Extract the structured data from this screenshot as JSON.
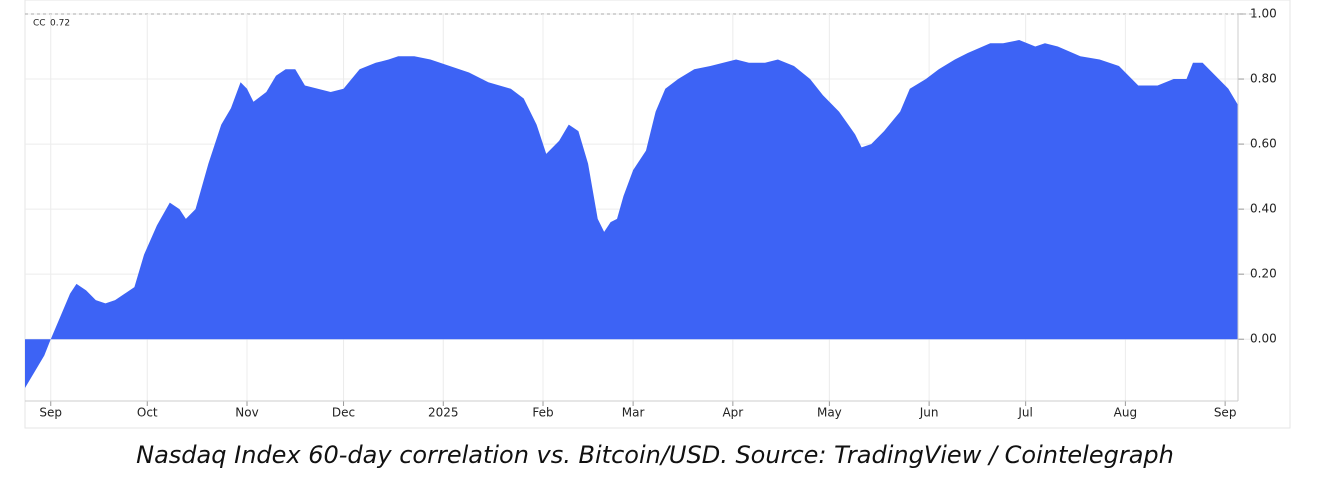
{
  "chart_data": {
    "type": "area",
    "caption": "Nasdaq Index 60-day correlation vs. Bitcoin/USD. Source: TradingView / Cointelegraph",
    "x": [
      0,
      3,
      6,
      8,
      11,
      14,
      16,
      19,
      22,
      25,
      28,
      31,
      34,
      37,
      41,
      45,
      48,
      50,
      53,
      57,
      61,
      64,
      67,
      69,
      71,
      75,
      78,
      81,
      84,
      87,
      91,
      95,
      99,
      104,
      109,
      113,
      116,
      121,
      126,
      132,
      138,
      144,
      151,
      155,
      159,
      162,
      166,
      169,
      172,
      175,
      178,
      180,
      182,
      184,
      186,
      189,
      193,
      196,
      199,
      203,
      208,
      213,
      217,
      221,
      225,
      230,
      234,
      239,
      244,
      248,
      253,
      258,
      260,
      263,
      267,
      272,
      275,
      280,
      284,
      289,
      293,
      300,
      304,
      309,
      314,
      317,
      321,
      328,
      334,
      340,
      346,
      352,
      357,
      361,
      363,
      366,
      370,
      374,
      377
    ],
    "series": [
      {
        "name": "CC",
        "color": "#3d63f5",
        "values": [
          -0.15,
          -0.1,
          -0.05,
          0,
          0.07,
          0.14,
          0.17,
          0.15,
          0.12,
          0.11,
          0.12,
          0.14,
          0.16,
          0.26,
          0.35,
          0.42,
          0.4,
          0.37,
          0.4,
          0.54,
          0.66,
          0.71,
          0.79,
          0.77,
          0.73,
          0.76,
          0.81,
          0.83,
          0.83,
          0.78,
          0.77,
          0.76,
          0.77,
          0.83,
          0.85,
          0.86,
          0.87,
          0.87,
          0.86,
          0.84,
          0.82,
          0.79,
          0.77,
          0.74,
          0.66,
          0.57,
          0.61,
          0.66,
          0.64,
          0.54,
          0.37,
          0.33,
          0.36,
          0.37,
          0.44,
          0.52,
          0.58,
          0.7,
          0.77,
          0.8,
          0.83,
          0.84,
          0.85,
          0.86,
          0.85,
          0.85,
          0.86,
          0.84,
          0.8,
          0.75,
          0.7,
          0.63,
          0.59,
          0.6,
          0.64,
          0.7,
          0.77,
          0.8,
          0.83,
          0.86,
          0.88,
          0.91,
          0.91,
          0.92,
          0.9,
          0.91,
          0.9,
          0.87,
          0.86,
          0.84,
          0.78,
          0.78,
          0.8,
          0.8,
          0.85,
          0.85,
          0.81,
          0.77,
          0.72
        ]
      }
    ],
    "xlim": [
      0,
      377
    ],
    "xticks": [
      {
        "value": 8,
        "label": "Sep"
      },
      {
        "value": 38,
        "label": "Oct"
      },
      {
        "value": 69,
        "label": "Nov"
      },
      {
        "value": 99,
        "label": "Dec"
      },
      {
        "value": 130,
        "label": "2025"
      },
      {
        "value": 161,
        "label": "Feb"
      },
      {
        "value": 189,
        "label": "Mar"
      },
      {
        "value": 220,
        "label": "Apr"
      },
      {
        "value": 250,
        "label": "May"
      },
      {
        "value": 281,
        "label": "Jun"
      },
      {
        "value": 311,
        "label": "Jul"
      },
      {
        "value": 342,
        "label": "Aug"
      },
      {
        "value": 373,
        "label": "Sep"
      }
    ],
    "ylim": [
      -0.19,
      1.0
    ],
    "yticks": [
      {
        "value": 0,
        "label": "0.00"
      },
      {
        "value": 0.2,
        "label": "0.20"
      },
      {
        "value": 0.4,
        "label": "0.40"
      },
      {
        "value": 0.6,
        "label": "0.60"
      },
      {
        "value": 0.8,
        "label": "0.80"
      },
      {
        "value": 1.0,
        "label": "1.00"
      }
    ],
    "grid": true
  }
}
